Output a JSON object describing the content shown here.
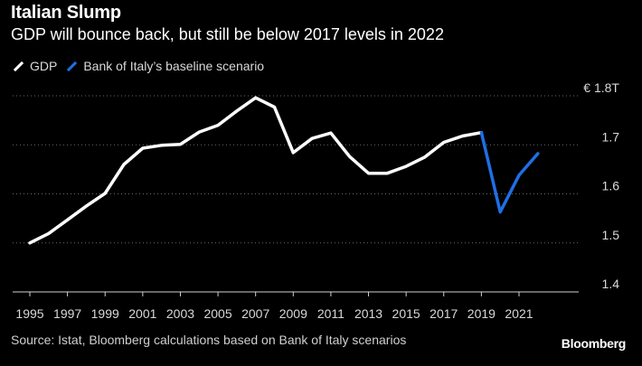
{
  "header": {
    "title": "Italian Slump",
    "subtitle": "GDP will bounce back, but still be below 2017 levels in 2022"
  },
  "legend": [
    {
      "label": "GDP",
      "color": "#ffffff"
    },
    {
      "label": "Bank of Italy’s baseline scenario",
      "color": "#1f6fe5"
    }
  ],
  "footer": {
    "source": "Source: Istat, Bloomberg calculations based on Bank of Italy scenarios",
    "brand": "Bloomberg"
  },
  "chart_data": {
    "type": "line",
    "title": "Italian Slump",
    "subtitle": "GDP will bounce back, but still be below 2017 levels in 2022",
    "xlabel": "",
    "ylabel": "",
    "xlim": [
      1995,
      2023.5
    ],
    "ylim": [
      1.4,
      1.8
    ],
    "y_ticks": [
      {
        "value": 1.8,
        "label": "€ 1.8T"
      },
      {
        "value": 1.7,
        "label": "1.7"
      },
      {
        "value": 1.6,
        "label": "1.6"
      },
      {
        "value": 1.5,
        "label": "1.5"
      },
      {
        "value": 1.4,
        "label": "1.4"
      }
    ],
    "x_ticks": [
      1995,
      1997,
      1999,
      2001,
      2003,
      2005,
      2007,
      2009,
      2011,
      2013,
      2015,
      2017,
      2019,
      2021
    ],
    "grid": "horizontal-dotted",
    "legend_position": "top-left",
    "series": [
      {
        "name": "GDP",
        "color": "#ffffff",
        "x": [
          1995,
          1996,
          1997,
          1998,
          1999,
          2000,
          2001,
          2002,
          2003,
          2004,
          2005,
          2006,
          2007,
          2008,
          2009,
          2010,
          2011,
          2012,
          2013,
          2014,
          2015,
          2016,
          2017,
          2018,
          2019
        ],
        "values": [
          1.5,
          1.519,
          1.547,
          1.575,
          1.601,
          1.66,
          1.693,
          1.699,
          1.701,
          1.726,
          1.74,
          1.769,
          1.796,
          1.777,
          1.684,
          1.713,
          1.724,
          1.676,
          1.642,
          1.642,
          1.656,
          1.675,
          1.705,
          1.718,
          1.725
        ]
      },
      {
        "name": "Bank of Italy’s baseline scenario",
        "color": "#1f6fe5",
        "x": [
          2019,
          2020,
          2021,
          2022
        ],
        "values": [
          1.725,
          1.563,
          1.638,
          1.682
        ]
      }
    ]
  }
}
